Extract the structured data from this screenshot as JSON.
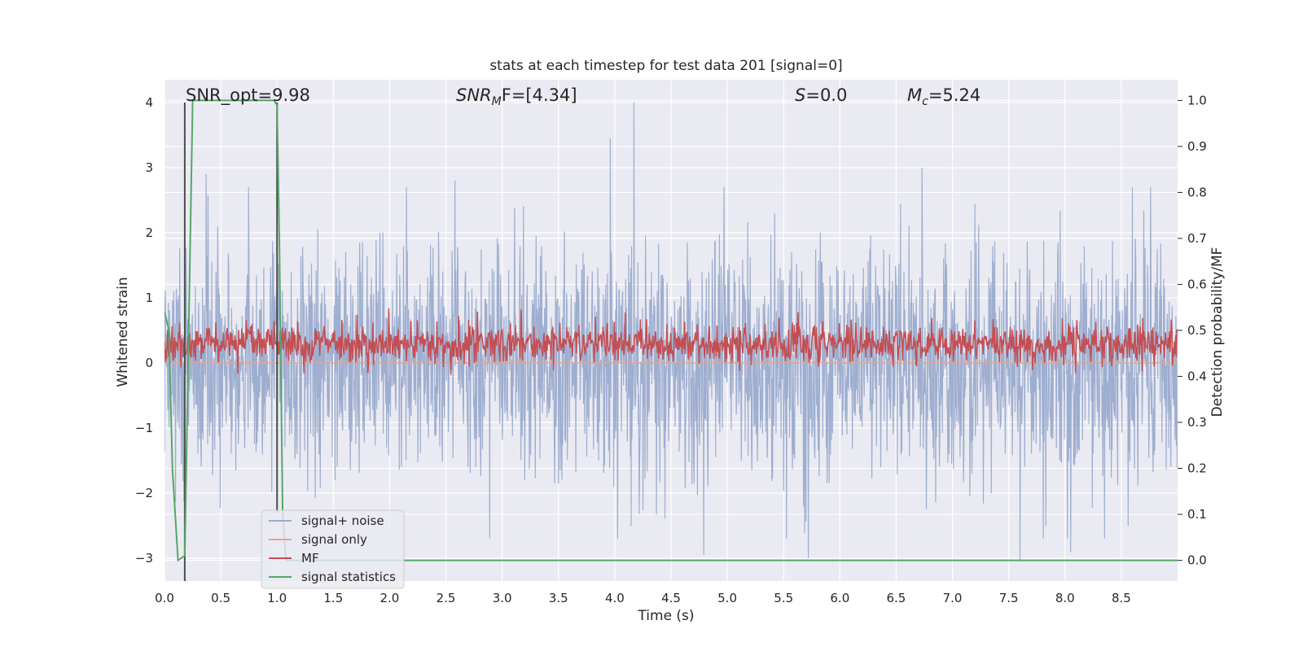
{
  "chart_data": {
    "type": "line",
    "title": "stats at each timestep for test data 201 [signal=0]",
    "xlabel": "Time (s)",
    "ylabel": "Whitened strain",
    "y2label": "Detection probability/MF",
    "xlim": [
      0.0,
      9.0
    ],
    "ylim": [
      -3.35,
      4.35
    ],
    "y2lim": [
      -0.045,
      1.045
    ],
    "xticks": [
      0.0,
      0.5,
      1.0,
      1.5,
      2.0,
      2.5,
      3.0,
      3.5,
      4.0,
      4.5,
      5.0,
      5.5,
      6.0,
      6.5,
      7.0,
      7.5,
      8.0,
      8.5
    ],
    "xtick_labels": [
      "0.0",
      "0.5",
      "1.0",
      "1.5",
      "2.0",
      "2.5",
      "3.0",
      "3.5",
      "4.0",
      "4.5",
      "5.0",
      "5.5",
      "6.0",
      "6.5",
      "7.0",
      "7.5",
      "8.0",
      "8.5"
    ],
    "yticks": [
      -3,
      -2,
      -1,
      0,
      1,
      2,
      3,
      4
    ],
    "ytick_labels": [
      "−3",
      "−2",
      "−1",
      "0",
      "1",
      "2",
      "3",
      "4"
    ],
    "y2ticks": [
      0.0,
      0.1,
      0.2,
      0.3,
      0.4,
      0.5,
      0.6,
      0.7,
      0.8,
      0.9,
      1.0
    ],
    "y2tick_labels": [
      "0.0",
      "0.1",
      "0.2",
      "0.3",
      "0.4",
      "0.5",
      "0.6",
      "0.7",
      "0.8",
      "0.9",
      "1.0"
    ],
    "annotations": {
      "snr_opt": "SNR_opt=9.98",
      "snr_mf_main": "SNR",
      "snr_mf_sub": "M",
      "snr_mf_rest": "F=[4.34]",
      "s_main": "S",
      "s_rest": "=0.0",
      "mc_main": "M",
      "mc_sub": "c",
      "mc_rest": "=5.24"
    },
    "series": [
      {
        "name": "signal+ noise",
        "color": "#9aabcd",
        "axis": "left",
        "description": "whitened strain, noise-like, roughly within ±2 with spikes to +4 and -3",
        "amplitude_std": 0.9,
        "spikes": [
          [
            4.17,
            4.0
          ],
          [
            3.96,
            3.45
          ],
          [
            7.6,
            -3.05
          ],
          [
            6.73,
            3.0
          ],
          [
            2.58,
            2.8
          ],
          [
            0.37,
            2.9
          ],
          [
            4.79,
            -2.95
          ],
          [
            5.72,
            -3.0
          ],
          [
            8.05,
            -2.9
          ]
        ]
      },
      {
        "name": "signal only",
        "color": "#e8a288",
        "axis": "left",
        "description": "zero (no signal injected)",
        "points": [
          [
            0.0,
            0.0
          ],
          [
            9.0,
            0.0
          ]
        ]
      },
      {
        "name": "MF",
        "color": "#c44e52",
        "axis": "right",
        "description": "matched filter output fluctuating around ~0.47",
        "center": 0.47,
        "amplitude": 0.035
      },
      {
        "name": "signal statistics",
        "color": "#55a868",
        "axis": "right",
        "points": [
          [
            0.0,
            0.54
          ],
          [
            0.04,
            0.5
          ],
          [
            0.07,
            0.2
          ],
          [
            0.12,
            0.0
          ],
          [
            0.18,
            0.01
          ],
          [
            0.25,
            1.0
          ],
          [
            0.97,
            1.0
          ],
          [
            1.0,
            0.99
          ],
          [
            1.02,
            0.7
          ],
          [
            1.05,
            0.1
          ],
          [
            1.08,
            0.0
          ],
          [
            9.0,
            0.0
          ]
        ]
      }
    ],
    "vlines": [
      {
        "x": 0.18,
        "color": "#4c4c4c",
        "ymin": -3.35,
        "ymax": 4.0
      },
      {
        "x": 1.0,
        "color": "#4c4c4c",
        "ymin": -2.3,
        "ymax": 4.0
      }
    ],
    "legend": {
      "location": "lower-left",
      "entries": [
        "signal+ noise",
        "signal only",
        "MF",
        "signal statistics"
      ]
    }
  }
}
